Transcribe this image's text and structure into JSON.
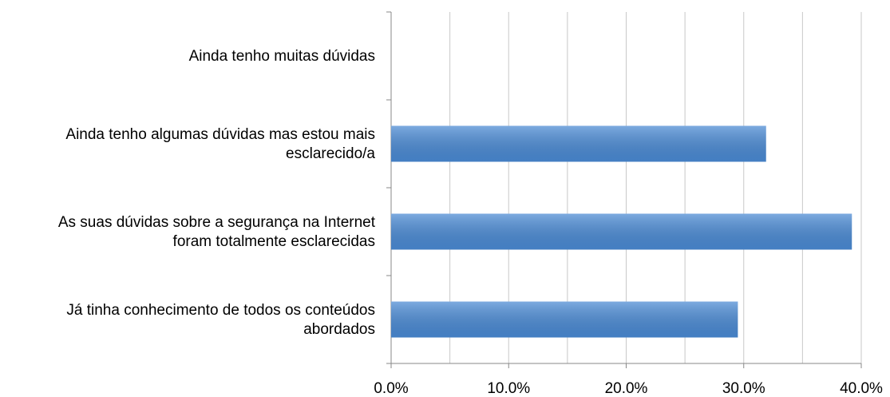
{
  "chart_data": {
    "type": "hbar",
    "categories": [
      "Ainda tenho muitas dúvidas",
      "Ainda tenho algumas dúvidas mas estou mais\nesclarecido/a",
      "As suas dúvidas sobre a segurança na Internet\nforam totalmente esclarecidas",
      "Já tinha conhecimento de todos os conteúdos\nabordados"
    ],
    "values": [
      0,
      31.9,
      39.2,
      29.5
    ],
    "color": "#4a8ad4",
    "xlim": [
      0,
      40
    ],
    "xticks": [
      {
        "value": 0,
        "label": "0.0%"
      },
      {
        "value": 10,
        "label": "10.0%"
      },
      {
        "value": 20,
        "label": "20.0%"
      },
      {
        "value": 30,
        "label": "30.0%"
      },
      {
        "value": 40,
        "label": "40.0%"
      }
    ],
    "xminor": [
      5,
      15,
      25,
      35
    ],
    "grid": true
  }
}
